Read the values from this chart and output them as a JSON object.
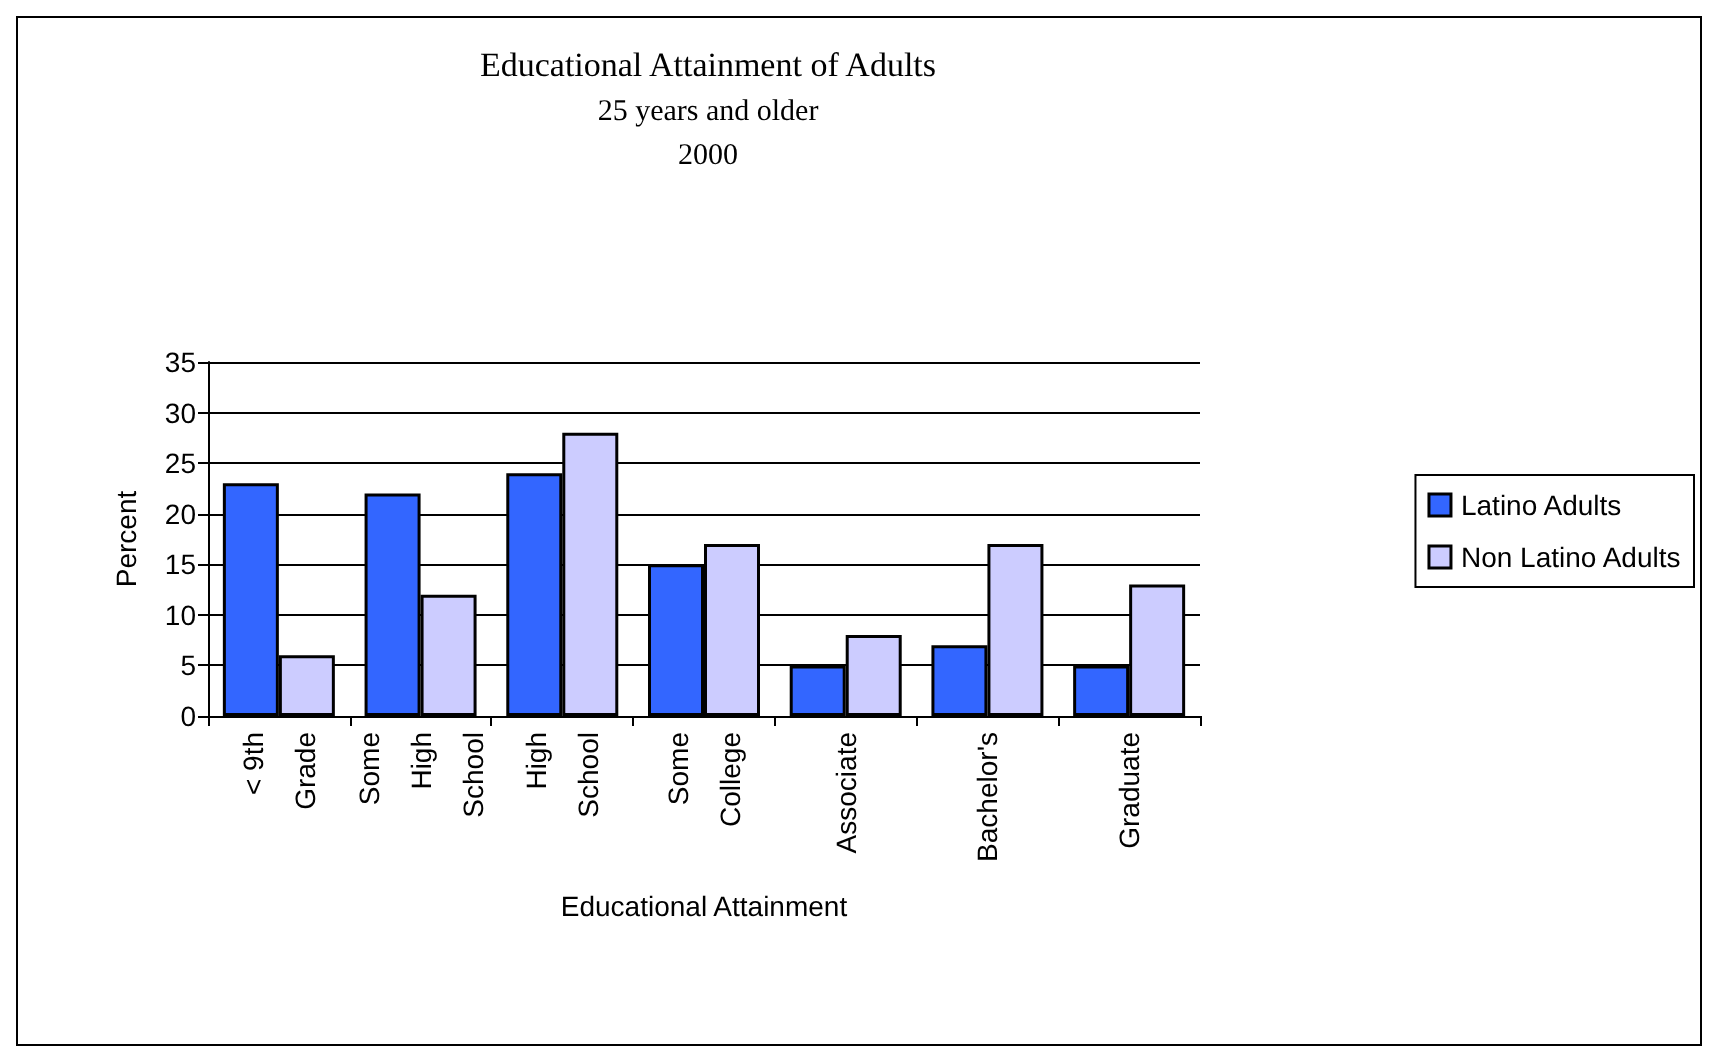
{
  "chart_data": {
    "type": "bar",
    "title": "Educational Attainment of Adults",
    "subtitle": "25 years and older\n2000",
    "xlabel": "Educational Attainment",
    "ylabel": "Percent",
    "categories": [
      "< 9th Grade",
      "Some High School",
      "High School",
      "Some College",
      "Associate",
      "Bachelor's",
      "Graduate"
    ],
    "series": [
      {
        "name": "Latino Adults",
        "color": "#3366ff",
        "values": [
          23,
          22,
          24,
          15,
          5,
          7,
          5
        ]
      },
      {
        "name": "Non Latino Adults",
        "color": "#ccccff",
        "values": [
          6,
          12,
          28,
          17,
          8,
          17,
          13
        ]
      }
    ],
    "ylim": [
      0,
      35
    ],
    "yticks": [
      0,
      5,
      10,
      15,
      20,
      25,
      30,
      35
    ],
    "grid": "y",
    "legend": "right"
  }
}
